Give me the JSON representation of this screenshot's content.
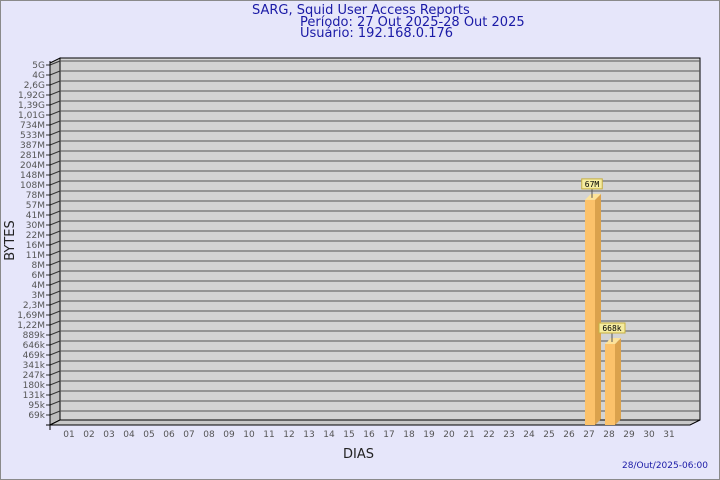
{
  "header": {
    "title": "SARG, Squid User Access Reports",
    "period": "Período: 27 Out 2025-28 Out 2025",
    "user": "Usuário: 192.168.0.176"
  },
  "footer": {
    "timestamp": "28/Out/2025-06:00"
  },
  "chart_data": {
    "type": "bar",
    "title": "SARG, Squid User Access Reports",
    "xlabel": "DIAS",
    "ylabel": "BYTES",
    "y_scale": "log",
    "grid": true,
    "three_d": true,
    "bar_color": "#fcc26a",
    "plot_bg": "#d3d3d3",
    "categories": [
      "01",
      "02",
      "03",
      "04",
      "05",
      "06",
      "07",
      "08",
      "09",
      "10",
      "11",
      "12",
      "13",
      "14",
      "15",
      "16",
      "17",
      "18",
      "19",
      "20",
      "21",
      "22",
      "23",
      "24",
      "25",
      "26",
      "27",
      "28",
      "29",
      "30",
      "31"
    ],
    "y_tick_labels": [
      "5G",
      "4G",
      "2,6G",
      "1,92G",
      "1,39G",
      "1,01G",
      "734M",
      "533M",
      "387M",
      "281M",
      "204M",
      "148M",
      "108M",
      "78M",
      "57M",
      "41M",
      "30M",
      "22M",
      "16M",
      "11M",
      "8M",
      "6M",
      "4M",
      "3M",
      "2,3M",
      "1,69M",
      "1,22M",
      "889k",
      "646k",
      "469k",
      "341k",
      "247k",
      "180k",
      "131k",
      "95k",
      "69k"
    ],
    "bars": [
      {
        "day": "27",
        "bytes": 67000000,
        "label": "67M"
      },
      {
        "day": "28",
        "bytes": 668000,
        "label": "668k"
      }
    ]
  }
}
